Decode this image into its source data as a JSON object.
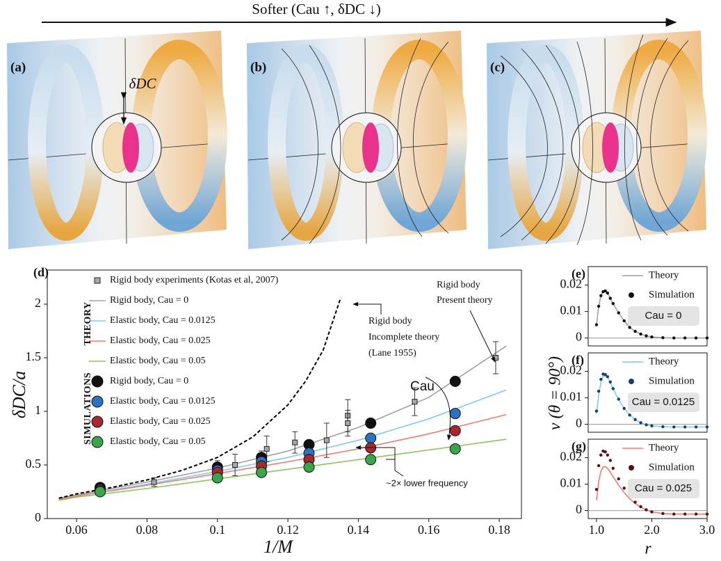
{
  "figure": {
    "arrow_label": "Softer (Cau ↑,  δDC ↓)",
    "panels": [
      "(a)",
      "(b)",
      "(c)"
    ],
    "gap_label": "δDC"
  },
  "chart_data": [
    {
      "type": "line",
      "panel_label": "(d)",
      "xlabel": "1/M",
      "ylabel": "δDC/a",
      "xlim": [
        0.0517,
        0.1863
      ],
      "ylim": [
        0,
        2.318
      ],
      "xticks": [
        0.06,
        0.08,
        0.1,
        0.12,
        0.14,
        0.16,
        0.18
      ],
      "yticks": [
        0,
        0.5,
        1,
        1.5,
        2
      ],
      "group_labels": [
        "THEORY",
        "SIMULATIONS"
      ],
      "annotations": [
        [
          "Rigid body",
          "Incomplete theory",
          "(Lane 1955)"
        ],
        [
          "Rigid body",
          "Present theory"
        ],
        "Cau",
        "~2× lower frequency"
      ],
      "series": [
        {
          "name": "Rigid body experiments (Kotas et al, 2007)",
          "color": "#a8a8a8",
          "marker": "square",
          "x": [
            0.0667,
            0.082,
            0.1,
            0.105,
            0.1125,
            0.114,
            0.122,
            0.131,
            0.137,
            0.137,
            0.156,
            0.179
          ],
          "values": [
            0.29,
            0.34,
            0.47,
            0.5,
            0.57,
            0.65,
            0.71,
            0.73,
            0.96,
            0.89,
            1.09,
            1.5
          ],
          "errors": [
            0.03,
            0.04,
            0.07,
            0.1,
            0.06,
            0.12,
            0.1,
            0.16,
            0.15,
            0.12,
            0.13,
            0.15
          ]
        },
        {
          "name": "Rigid body, Cau = 0",
          "color": "#a0a0a0",
          "style": "line",
          "x": [
            0.055,
            0.06,
            0.08,
            0.1,
            0.12,
            0.14,
            0.16,
            0.182
          ],
          "values": [
            0.19,
            0.22,
            0.34,
            0.47,
            0.63,
            0.85,
            1.13,
            1.61
          ]
        },
        {
          "name": "Elastic body, Cau = 0.0125",
          "color": "#7ecbf0",
          "style": "line",
          "x": [
            0.055,
            0.06,
            0.08,
            0.1,
            0.12,
            0.14,
            0.16,
            0.182
          ],
          "values": [
            0.18,
            0.21,
            0.32,
            0.44,
            0.57,
            0.73,
            0.93,
            1.2
          ]
        },
        {
          "name": "Elastic body, Cau = 0.025",
          "color": "#f07c72",
          "style": "line",
          "x": [
            0.055,
            0.06,
            0.08,
            0.1,
            0.12,
            0.14,
            0.16,
            0.182
          ],
          "values": [
            0.18,
            0.21,
            0.31,
            0.42,
            0.53,
            0.65,
            0.79,
            0.97
          ]
        },
        {
          "name": "Elastic body, Cau = 0.05",
          "color": "#8cc65a",
          "style": "line",
          "x": [
            0.055,
            0.06,
            0.08,
            0.1,
            0.12,
            0.14,
            0.16,
            0.182
          ],
          "values": [
            0.17,
            0.2,
            0.28,
            0.37,
            0.46,
            0.55,
            0.64,
            0.74
          ]
        },
        {
          "color": "#000000",
          "style": "line",
          "dash": true,
          "x": [
            0.055,
            0.06,
            0.07,
            0.08,
            0.09,
            0.1,
            0.11,
            0.12,
            0.125,
            0.13,
            0.135
          ],
          "values": [
            0.19,
            0.23,
            0.29,
            0.36,
            0.45,
            0.57,
            0.76,
            1.06,
            1.28,
            1.57,
            2.06
          ]
        },
        {
          "name": "Rigid body, Cau = 0",
          "color": "#111111",
          "marker": "circle",
          "x": [
            0.0667,
            0.1,
            0.1125,
            0.126,
            0.1435,
            0.1675
          ],
          "values": [
            0.29,
            0.48,
            0.57,
            0.69,
            0.89,
            1.28
          ]
        },
        {
          "name": "Elastic body, Cau = 0.0125",
          "color": "#2b73c0",
          "marker": "circle",
          "x": [
            0.0667,
            0.1,
            0.1125,
            0.126,
            0.1435,
            0.1675
          ],
          "values": [
            0.27,
            0.45,
            0.53,
            0.61,
            0.75,
            0.98
          ]
        },
        {
          "name": "Elastic body, Cau = 0.025",
          "color": "#a8282e",
          "marker": "circle",
          "x": [
            0.0667,
            0.1,
            0.1125,
            0.126,
            0.1435,
            0.1675
          ],
          "values": [
            0.26,
            0.43,
            0.49,
            0.55,
            0.66,
            0.82
          ]
        },
        {
          "name": "Elastic body, Cau = 0.05",
          "color": "#3aa64a",
          "marker": "circle",
          "x": [
            0.0667,
            0.1,
            0.1125,
            0.126,
            0.1435,
            0.1675
          ],
          "values": [
            0.25,
            0.38,
            0.43,
            0.48,
            0.55,
            0.65
          ]
        }
      ]
    },
    {
      "type": "line",
      "panel_label": "(e)",
      "ylabel": "v (θ = 90°)",
      "annotation": "Cau = 0",
      "xlim": [
        0.85,
        3.0
      ],
      "ylim": [
        -0.003,
        0.027
      ],
      "yticks": [
        0,
        0.01,
        0.02
      ],
      "zero_line": true,
      "x": [
        1.0,
        1.04,
        1.08,
        1.12,
        1.16,
        1.2,
        1.25,
        1.3,
        1.4,
        1.5,
        1.6,
        1.7,
        1.8,
        1.9,
        2.0,
        2.2,
        2.4,
        2.6,
        2.8,
        3.0
      ],
      "series": [
        {
          "name": "Theory",
          "color": "#a0a0a0",
          "style": "line",
          "values": [
            0.005,
            0.012,
            0.016,
            0.0175,
            0.0178,
            0.017,
            0.015,
            0.013,
            0.0095,
            0.0065,
            0.004,
            0.0025,
            0.0015,
            0.0008,
            0.0004,
            0.0001,
            0,
            0,
            0,
            0
          ]
        },
        {
          "name": "Simulation",
          "color": "#111111",
          "marker": "circle",
          "values": [
            0.005,
            0.012,
            0.016,
            0.0175,
            0.0178,
            0.017,
            0.015,
            0.013,
            0.0095,
            0.0065,
            0.004,
            0.0025,
            0.0015,
            0.0008,
            0.0004,
            0.0001,
            0,
            0,
            0,
            0
          ]
        }
      ]
    },
    {
      "type": "line",
      "panel_label": "(f)",
      "annotation": "Cau = 0.0125",
      "xlim": [
        0.85,
        3.0
      ],
      "ylim": [
        -0.003,
        0.027
      ],
      "yticks": [
        0,
        0.01,
        0.02
      ],
      "zero_line": true,
      "x": [
        1.0,
        1.04,
        1.08,
        1.12,
        1.16,
        1.2,
        1.25,
        1.3,
        1.4,
        1.5,
        1.6,
        1.7,
        1.8,
        1.9,
        2.0,
        2.2,
        2.4,
        2.6,
        2.8,
        3.0
      ],
      "series": [
        {
          "name": "Theory",
          "color": "#7ecbf0",
          "style": "line",
          "values": [
            0.004,
            0.011,
            0.016,
            0.018,
            0.0185,
            0.0178,
            0.0158,
            0.0134,
            0.0094,
            0.006,
            0.0035,
            0.0018,
            0.0006,
            -0.0002,
            -0.0006,
            -0.0009,
            -0.001,
            -0.001,
            -0.001,
            -0.001
          ]
        },
        {
          "name": "Simulation",
          "color": "#1a3d6b",
          "marker": "circle",
          "values": [
            0.005,
            0.0125,
            0.017,
            0.019,
            0.0188,
            0.018,
            0.016,
            0.0135,
            0.0095,
            0.006,
            0.0035,
            0.0018,
            0.0006,
            -0.0002,
            -0.0006,
            -0.0009,
            -0.001,
            -0.001,
            -0.001,
            -0.001
          ]
        }
      ]
    },
    {
      "type": "line",
      "panel_label": "(g)",
      "xlabel": "r",
      "annotation": "Cau = 0.025",
      "xlim": [
        0.85,
        3.0
      ],
      "ylim": [
        -0.003,
        0.027
      ],
      "xticks": [
        {
          "value": 1,
          "label": "1.0"
        },
        {
          "value": 2,
          "label": "2.0"
        },
        {
          "value": 3,
          "label": "3.0"
        }
      ],
      "yticks": [
        0,
        0.01,
        0.02
      ],
      "zero_line": true,
      "x": [
        1.0,
        1.04,
        1.08,
        1.12,
        1.16,
        1.2,
        1.25,
        1.3,
        1.4,
        1.5,
        1.6,
        1.7,
        1.8,
        1.9,
        2.0,
        2.2,
        2.4,
        2.6,
        2.8,
        3.0
      ],
      "series": [
        {
          "name": "Theory",
          "color": "#f07c72",
          "style": "line",
          "values": [
            0.004,
            0.011,
            0.015,
            0.0165,
            0.0166,
            0.016,
            0.0145,
            0.0128,
            0.0096,
            0.0068,
            0.0045,
            0.0027,
            0.0013,
            0.0003,
            -0.0005,
            -0.0011,
            -0.0013,
            -0.0013,
            -0.0013,
            -0.0013
          ]
        },
        {
          "name": "Simulation",
          "color": "#5a1010",
          "marker": "circle",
          "values": [
            0.008,
            0.017,
            0.021,
            0.0225,
            0.0222,
            0.021,
            0.019,
            0.016,
            0.012,
            0.0085,
            0.0055,
            0.0032,
            0.0015,
            0.0003,
            -0.0005,
            -0.0011,
            -0.0013,
            -0.0013,
            -0.0013,
            -0.0013
          ]
        }
      ]
    }
  ]
}
